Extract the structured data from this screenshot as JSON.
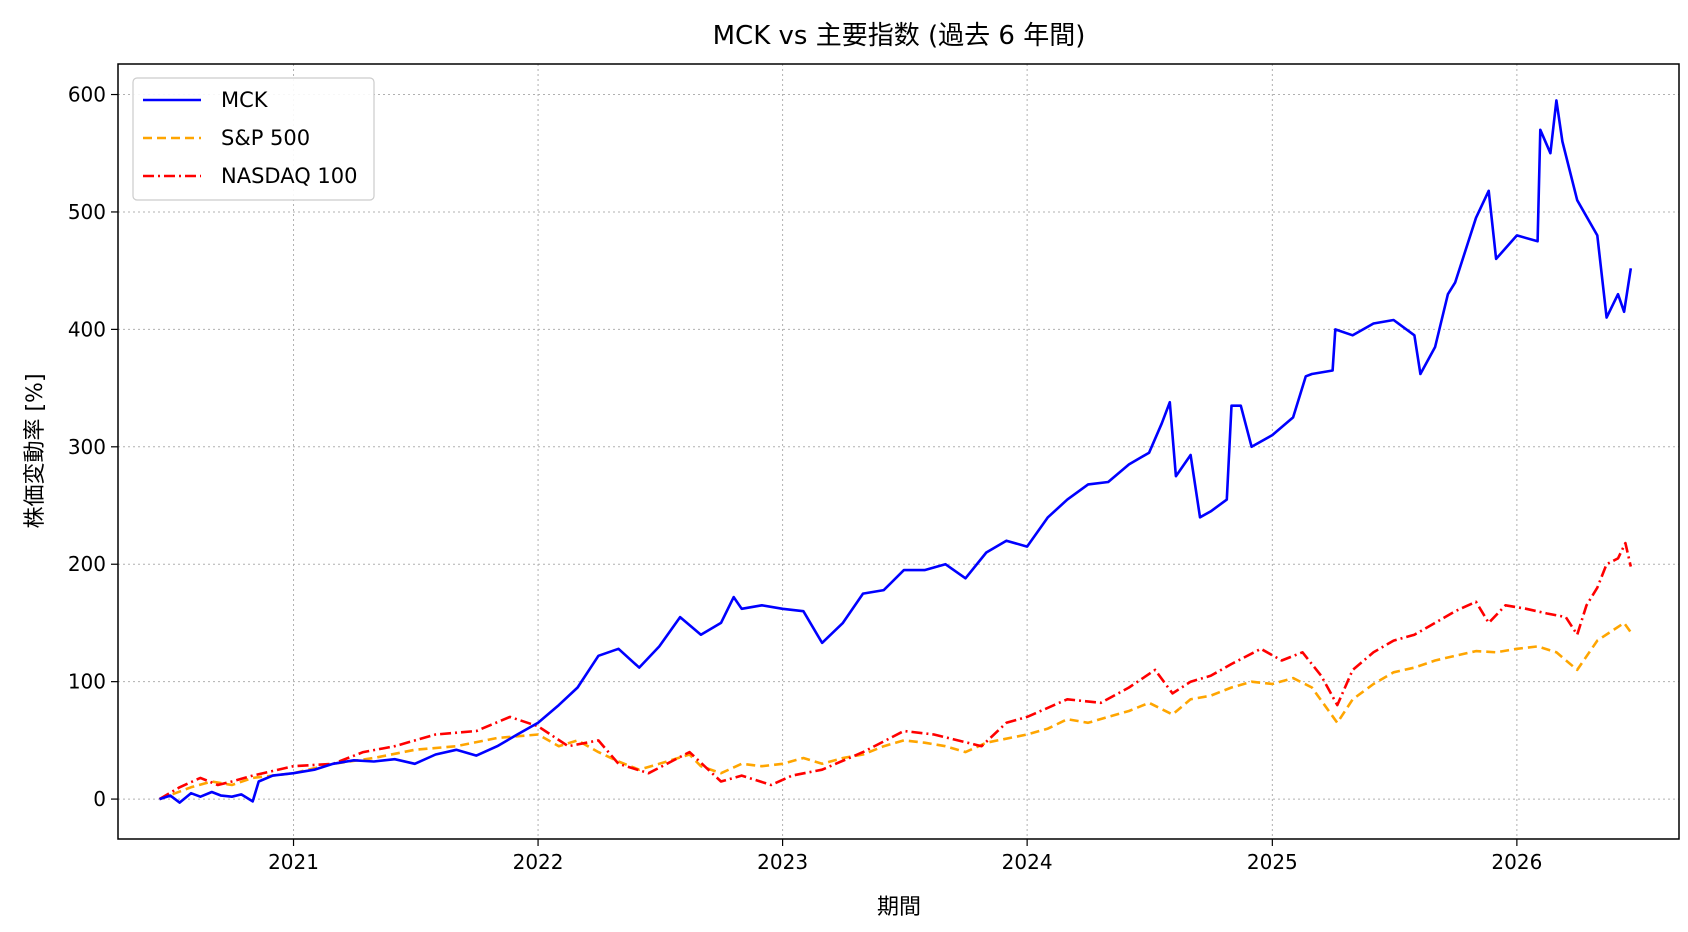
{
  "chart_data": {
    "type": "line",
    "title": "MCK vs 主要指数 (過去 6 年間)",
    "xlabel": "期間",
    "ylabel": "株価変動率 [%]",
    "xlim": [
      "2020-04-14",
      "2026-08-31"
    ],
    "ylim": [
      -34,
      626
    ],
    "xticks": [
      "2021",
      "2022",
      "2023",
      "2024",
      "2025",
      "2026"
    ],
    "yticks": [
      0,
      100,
      200,
      300,
      400,
      500,
      600
    ],
    "grid": true,
    "legend_position": "upper left",
    "series": [
      {
        "name": "MCK",
        "color": "#0000ff",
        "style": "solid",
        "points": [
          [
            "2020-06-15",
            0
          ],
          [
            "2020-07-01",
            3
          ],
          [
            "2020-07-15",
            -3
          ],
          [
            "2020-08-01",
            5
          ],
          [
            "2020-08-15",
            2
          ],
          [
            "2020-09-01",
            6
          ],
          [
            "2020-09-15",
            3
          ],
          [
            "2020-10-01",
            2
          ],
          [
            "2020-10-15",
            4
          ],
          [
            "2020-11-01",
            -2
          ],
          [
            "2020-11-10",
            15
          ],
          [
            "2020-12-01",
            20
          ],
          [
            "2021-01-01",
            22
          ],
          [
            "2021-02-01",
            25
          ],
          [
            "2021-03-01",
            30
          ],
          [
            "2021-04-01",
            33
          ],
          [
            "2021-05-01",
            32
          ],
          [
            "2021-06-01",
            34
          ],
          [
            "2021-07-01",
            30
          ],
          [
            "2021-08-01",
            38
          ],
          [
            "2021-09-01",
            42
          ],
          [
            "2021-10-01",
            37
          ],
          [
            "2021-11-01",
            45
          ],
          [
            "2021-12-01",
            55
          ],
          [
            "2022-01-01",
            65
          ],
          [
            "2022-02-01",
            80
          ],
          [
            "2022-03-01",
            95
          ],
          [
            "2022-04-01",
            122
          ],
          [
            "2022-05-01",
            128
          ],
          [
            "2022-06-01",
            112
          ],
          [
            "2022-07-01",
            130
          ],
          [
            "2022-08-01",
            155
          ],
          [
            "2022-09-01",
            140
          ],
          [
            "2022-10-01",
            150
          ],
          [
            "2022-10-20",
            172
          ],
          [
            "2022-11-01",
            162
          ],
          [
            "2022-12-01",
            165
          ],
          [
            "2023-01-01",
            162
          ],
          [
            "2023-02-01",
            160
          ],
          [
            "2023-03-01",
            133
          ],
          [
            "2023-04-01",
            150
          ],
          [
            "2023-05-01",
            175
          ],
          [
            "2023-06-01",
            178
          ],
          [
            "2023-07-01",
            195
          ],
          [
            "2023-08-01",
            195
          ],
          [
            "2023-09-01",
            200
          ],
          [
            "2023-10-01",
            188
          ],
          [
            "2023-11-01",
            210
          ],
          [
            "2023-12-01",
            220
          ],
          [
            "2024-01-01",
            215
          ],
          [
            "2024-02-01",
            240
          ],
          [
            "2024-03-01",
            255
          ],
          [
            "2024-04-01",
            268
          ],
          [
            "2024-05-01",
            270
          ],
          [
            "2024-06-01",
            285
          ],
          [
            "2024-07-01",
            295
          ],
          [
            "2024-07-20",
            320
          ],
          [
            "2024-08-01",
            338
          ],
          [
            "2024-08-10",
            275
          ],
          [
            "2024-09-01",
            293
          ],
          [
            "2024-09-15",
            240
          ],
          [
            "2024-10-01",
            245
          ],
          [
            "2024-10-25",
            255
          ],
          [
            "2024-11-01",
            335
          ],
          [
            "2024-11-15",
            335
          ],
          [
            "2024-12-01",
            300
          ],
          [
            "2025-01-01",
            310
          ],
          [
            "2025-02-01",
            325
          ],
          [
            "2025-02-20",
            360
          ],
          [
            "2025-03-01",
            362
          ],
          [
            "2025-04-01",
            365
          ],
          [
            "2025-04-05",
            400
          ],
          [
            "2025-05-01",
            395
          ],
          [
            "2025-06-01",
            405
          ],
          [
            "2025-07-01",
            408
          ],
          [
            "2025-08-01",
            395
          ],
          [
            "2025-08-10",
            362
          ],
          [
            "2025-09-01",
            385
          ],
          [
            "2025-09-20",
            430
          ],
          [
            "2025-10-01",
            440
          ],
          [
            "2025-11-01",
            495
          ],
          [
            "2025-11-20",
            518
          ],
          [
            "2025-12-01",
            460
          ],
          [
            "2026-01-01",
            480
          ],
          [
            "2026-02-01",
            475
          ],
          [
            "2026-02-05",
            570
          ],
          [
            "2026-02-20",
            550
          ],
          [
            "2026-03-01",
            595
          ],
          [
            "2026-03-10",
            560
          ],
          [
            "2026-04-01",
            510
          ],
          [
            "2026-05-01",
            480
          ],
          [
            "2026-05-15",
            410
          ],
          [
            "2026-06-01",
            430
          ],
          [
            "2026-06-10",
            415
          ],
          [
            "2026-06-20",
            452
          ]
        ]
      },
      {
        "name": "S&P 500",
        "color": "#ffa500",
        "style": "dashed",
        "points": [
          [
            "2020-06-15",
            0
          ],
          [
            "2020-08-01",
            10
          ],
          [
            "2020-09-01",
            15
          ],
          [
            "2020-10-01",
            12
          ],
          [
            "2020-11-01",
            18
          ],
          [
            "2021-01-01",
            22
          ],
          [
            "2021-03-01",
            30
          ],
          [
            "2021-05-01",
            35
          ],
          [
            "2021-07-01",
            42
          ],
          [
            "2021-09-01",
            45
          ],
          [
            "2021-11-01",
            52
          ],
          [
            "2022-01-01",
            55
          ],
          [
            "2022-02-01",
            45
          ],
          [
            "2022-03-01",
            50
          ],
          [
            "2022-04-01",
            40
          ],
          [
            "2022-05-01",
            32
          ],
          [
            "2022-06-01",
            25
          ],
          [
            "2022-07-01",
            30
          ],
          [
            "2022-08-15",
            38
          ],
          [
            "2022-09-01",
            28
          ],
          [
            "2022-10-01",
            22
          ],
          [
            "2022-11-01",
            30
          ],
          [
            "2022-12-01",
            28
          ],
          [
            "2023-01-01",
            30
          ],
          [
            "2023-02-01",
            35
          ],
          [
            "2023-03-01",
            30
          ],
          [
            "2023-04-01",
            35
          ],
          [
            "2023-05-01",
            38
          ],
          [
            "2023-06-01",
            45
          ],
          [
            "2023-07-01",
            50
          ],
          [
            "2023-08-01",
            48
          ],
          [
            "2023-09-01",
            45
          ],
          [
            "2023-10-01",
            40
          ],
          [
            "2023-11-01",
            48
          ],
          [
            "2024-01-01",
            55
          ],
          [
            "2024-02-01",
            60
          ],
          [
            "2024-03-01",
            68
          ],
          [
            "2024-04-01",
            65
          ],
          [
            "2024-05-01",
            70
          ],
          [
            "2024-06-01",
            75
          ],
          [
            "2024-07-01",
            82
          ],
          [
            "2024-08-05",
            72
          ],
          [
            "2024-09-01",
            85
          ],
          [
            "2024-10-01",
            88
          ],
          [
            "2024-11-01",
            95
          ],
          [
            "2024-12-01",
            100
          ],
          [
            "2025-01-01",
            98
          ],
          [
            "2025-02-01",
            103
          ],
          [
            "2025-03-01",
            95
          ],
          [
            "2025-04-08",
            65
          ],
          [
            "2025-05-01",
            85
          ],
          [
            "2025-06-01",
            98
          ],
          [
            "2025-07-01",
            108
          ],
          [
            "2025-08-01",
            112
          ],
          [
            "2025-09-01",
            118
          ],
          [
            "2025-10-01",
            122
          ],
          [
            "2025-11-01",
            126
          ],
          [
            "2025-12-01",
            125
          ],
          [
            "2026-01-01",
            128
          ],
          [
            "2026-02-01",
            130
          ],
          [
            "2026-03-01",
            125
          ],
          [
            "2026-04-01",
            110
          ],
          [
            "2026-05-01",
            135
          ],
          [
            "2026-06-10",
            150
          ],
          [
            "2026-06-20",
            142
          ]
        ]
      },
      {
        "name": "NASDAQ 100",
        "color": "#ff0000",
        "style": "dashdot",
        "points": [
          [
            "2020-06-15",
            0
          ],
          [
            "2020-07-15",
            10
          ],
          [
            "2020-08-15",
            18
          ],
          [
            "2020-09-10",
            12
          ],
          [
            "2020-10-01",
            15
          ],
          [
            "2020-11-01",
            20
          ],
          [
            "2021-01-01",
            28
          ],
          [
            "2021-03-01",
            30
          ],
          [
            "2021-04-15",
            40
          ],
          [
            "2021-06-01",
            45
          ],
          [
            "2021-08-01",
            55
          ],
          [
            "2021-10-01",
            58
          ],
          [
            "2021-11-20",
            70
          ],
          [
            "2022-01-01",
            62
          ],
          [
            "2022-02-15",
            45
          ],
          [
            "2022-04-01",
            50
          ],
          [
            "2022-05-01",
            30
          ],
          [
            "2022-06-15",
            22
          ],
          [
            "2022-08-15",
            40
          ],
          [
            "2022-10-01",
            15
          ],
          [
            "2022-11-01",
            20
          ],
          [
            "2022-12-15",
            12
          ],
          [
            "2023-01-15",
            20
          ],
          [
            "2023-03-01",
            25
          ],
          [
            "2023-05-01",
            40
          ],
          [
            "2023-07-01",
            58
          ],
          [
            "2023-08-15",
            55
          ],
          [
            "2023-10-25",
            45
          ],
          [
            "2023-12-01",
            65
          ],
          [
            "2024-01-01",
            70
          ],
          [
            "2024-03-01",
            85
          ],
          [
            "2024-04-20",
            82
          ],
          [
            "2024-06-01",
            95
          ],
          [
            "2024-07-10",
            110
          ],
          [
            "2024-08-05",
            90
          ],
          [
            "2024-09-01",
            100
          ],
          [
            "2024-10-01",
            105
          ],
          [
            "2024-11-01",
            115
          ],
          [
            "2024-12-15",
            128
          ],
          [
            "2025-01-15",
            118
          ],
          [
            "2025-02-15",
            125
          ],
          [
            "2025-03-15",
            105
          ],
          [
            "2025-04-08",
            80
          ],
          [
            "2025-05-01",
            110
          ],
          [
            "2025-06-01",
            125
          ],
          [
            "2025-07-01",
            135
          ],
          [
            "2025-08-01",
            140
          ],
          [
            "2025-09-01",
            150
          ],
          [
            "2025-10-01",
            160
          ],
          [
            "2025-11-01",
            168
          ],
          [
            "2025-11-20",
            150
          ],
          [
            "2025-12-15",
            165
          ],
          [
            "2026-01-15",
            162
          ],
          [
            "2026-02-15",
            158
          ],
          [
            "2026-03-15",
            155
          ],
          [
            "2026-04-01",
            140
          ],
          [
            "2026-04-15",
            165
          ],
          [
            "2026-05-01",
            180
          ],
          [
            "2026-05-15",
            200
          ],
          [
            "2026-06-01",
            205
          ],
          [
            "2026-06-12",
            218
          ],
          [
            "2026-06-20",
            198
          ]
        ]
      }
    ]
  }
}
